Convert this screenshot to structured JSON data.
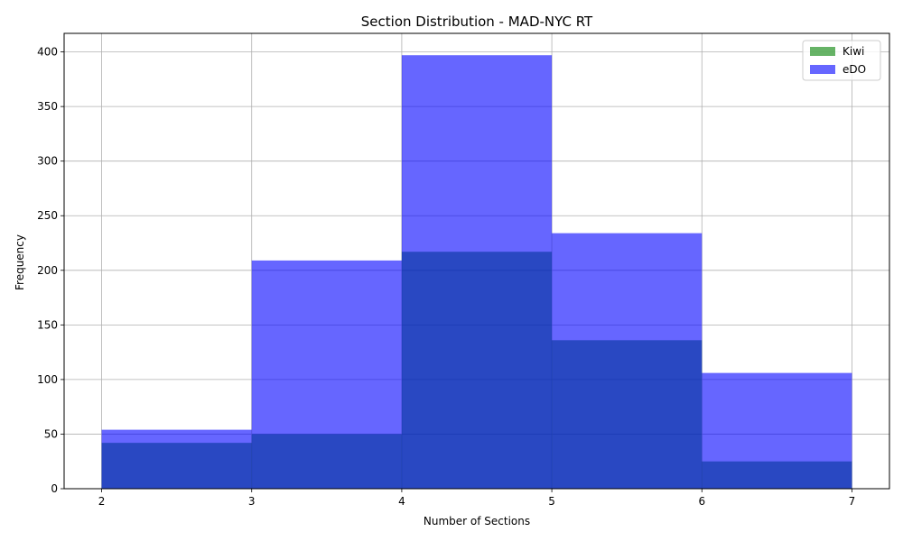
{
  "chart_data": {
    "type": "bar",
    "title": "Section Distribution - MAD-NYC RT",
    "xlabel": "Number of Sections",
    "ylabel": "Frequency",
    "bin_edges": [
      2,
      3,
      4,
      5,
      6,
      7
    ],
    "xlim": [
      1.75,
      7.25
    ],
    "ylim": [
      0,
      417
    ],
    "xticks": [
      2,
      3,
      4,
      5,
      6,
      7
    ],
    "yticks": [
      0,
      50,
      100,
      150,
      200,
      250,
      300,
      350,
      400
    ],
    "grid": true,
    "legend_position": "top-right",
    "series": [
      {
        "name": "Kiwi",
        "color": "#008000",
        "opacity": 0.6,
        "values": [
          42,
          50,
          217,
          136,
          25
        ]
      },
      {
        "name": "eDO",
        "color": "#0000ff",
        "opacity": 0.6,
        "values": [
          54,
          209,
          397,
          234,
          106
        ]
      }
    ]
  }
}
